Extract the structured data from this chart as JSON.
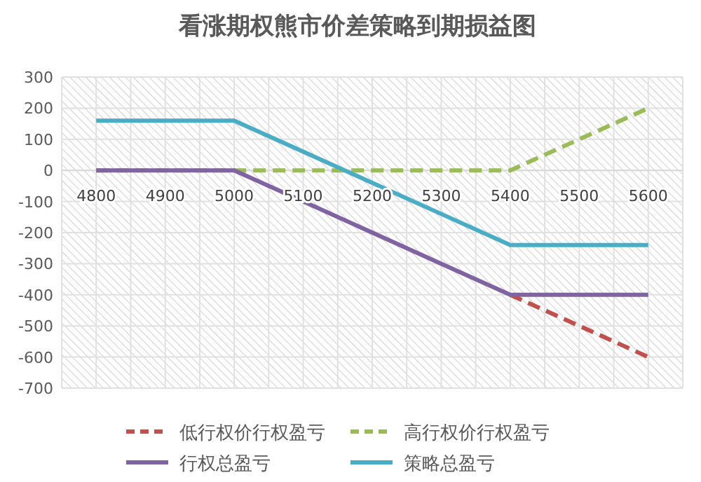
{
  "chart_data": {
    "type": "line",
    "title": "看涨期权熊市价差策略到期损益图",
    "categories": [
      "4800",
      "4900",
      "5000",
      "5100",
      "5200",
      "5300",
      "5400",
      "5500",
      "5600"
    ],
    "series": [
      {
        "name": "低行权价行权盈亏",
        "color": "#c0504d",
        "line_style": "dashed",
        "values": [
          null,
          null,
          null,
          null,
          null,
          null,
          -400,
          -500,
          -600
        ]
      },
      {
        "name": "高行权价行权盈亏",
        "color": "#9bbb59",
        "line_style": "dashed",
        "values": [
          0,
          0,
          0,
          0,
          0,
          0,
          0,
          100,
          200
        ]
      },
      {
        "name": "行权总盈亏",
        "color": "#8064a2",
        "line_style": "solid",
        "values": [
          0,
          0,
          0,
          -100,
          -200,
          -300,
          -400,
          -400,
          -400
        ]
      },
      {
        "name": "策略总盈亏",
        "color": "#4bacc6",
        "line_style": "solid",
        "values": [
          160,
          160,
          160,
          60,
          -40,
          -140,
          -240,
          -240,
          -240
        ]
      }
    ],
    "ylim": [
      -700,
      300
    ],
    "yticks": [
      -700,
      -600,
      -500,
      -400,
      -300,
      -200,
      -100,
      0,
      100,
      200,
      300
    ],
    "grid": true,
    "legend": "bottom",
    "marker": "none"
  }
}
